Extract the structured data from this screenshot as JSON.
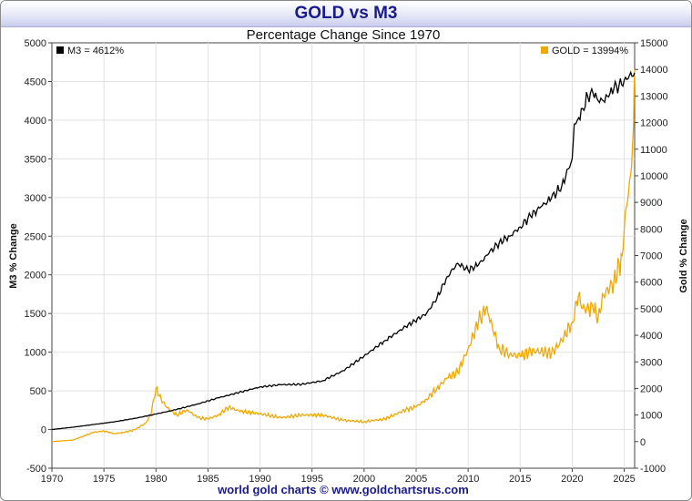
{
  "chart_data": {
    "type": "line",
    "title": "GOLD vs M3",
    "subtitle": "Percentage Change Since 1970",
    "footer": "world gold charts © www.goldchartsrus.com",
    "x_ticks": [
      1970,
      1975,
      1980,
      1985,
      1990,
      1995,
      2000,
      2005,
      2010,
      2015,
      2020,
      2025
    ],
    "xlim": [
      1970,
      2026
    ],
    "ylabel_left": "M3  % Change",
    "ylabel_right": "Gold  % Change",
    "ylim_left": [
      -500,
      5000
    ],
    "ylim_right": [
      -1000,
      15000
    ],
    "left_ticks": [
      -500,
      0,
      500,
      1000,
      1500,
      2000,
      2500,
      3000,
      3500,
      4000,
      4500,
      5000
    ],
    "right_ticks": [
      -1000,
      0,
      1000,
      2000,
      3000,
      4000,
      5000,
      6000,
      7000,
      8000,
      9000,
      10000,
      11000,
      12000,
      13000,
      14000,
      15000
    ],
    "legend_m3": "M3  = 4612%",
    "legend_gold": "GOLD = 13994%",
    "series": [
      {
        "name": "M3",
        "axis": "left",
        "color": "#000000",
        "x": [
          1970,
          1972,
          1974,
          1976,
          1978,
          1980,
          1982,
          1984,
          1986,
          1988,
          1990,
          1992,
          1994,
          1996,
          1998,
          2000,
          2002,
          2004,
          2006,
          2007,
          2008,
          2009,
          2010,
          2011,
          2012,
          2013,
          2014,
          2015,
          2016,
          2017,
          2018,
          2019,
          2020,
          2020.2,
          2020.5,
          2021,
          2021.5,
          2022,
          2022.5,
          2023,
          2023.5,
          2024,
          2024.5,
          2025,
          2025.5,
          2026
        ],
        "values": [
          0,
          30,
          65,
          100,
          145,
          200,
          260,
          330,
          410,
          480,
          550,
          580,
          585,
          630,
          760,
          950,
          1150,
          1330,
          1500,
          1700,
          1980,
          2150,
          2060,
          2130,
          2280,
          2420,
          2500,
          2620,
          2760,
          2880,
          2990,
          3150,
          3500,
          3950,
          4000,
          4150,
          4300,
          4350,
          4250,
          4250,
          4300,
          4400,
          4450,
          4520,
          4580,
          4612
        ]
      },
      {
        "name": "GOLD",
        "axis": "right",
        "color": "#f0a800",
        "x": [
          1970,
          1972,
          1973,
          1974,
          1975,
          1976,
          1977,
          1978,
          1979,
          1979.5,
          1980,
          1980.5,
          1981,
          1982,
          1983,
          1984,
          1985,
          1986,
          1987,
          1988,
          1990,
          1992,
          1994,
          1996,
          1998,
          2000,
          2002,
          2004,
          2005,
          2006,
          2007,
          2008,
          2009,
          2010,
          2011,
          2011.7,
          2012,
          2013,
          2014,
          2015,
          2016,
          2017,
          2018,
          2019,
          2020,
          2020.6,
          2021,
          2022,
          2022.5,
          2023,
          2024,
          2024.8,
          2025,
          2025.3,
          2025.6,
          2025.9,
          2026
        ],
        "values": [
          0,
          60,
          200,
          350,
          400,
          300,
          350,
          450,
          700,
          1000,
          2000,
          1600,
          1300,
          1000,
          1200,
          900,
          850,
          1000,
          1300,
          1150,
          1050,
          900,
          1000,
          1000,
          800,
          750,
          850,
          1200,
          1300,
          1600,
          2000,
          2400,
          2600,
          3500,
          4500,
          5000,
          4700,
          3500,
          3300,
          3200,
          3400,
          3400,
          3300,
          3800,
          4500,
          5500,
          5000,
          5000,
          4700,
          5500,
          6000,
          7000,
          8000,
          9000,
          10000,
          12000,
          13994
        ]
      }
    ]
  }
}
